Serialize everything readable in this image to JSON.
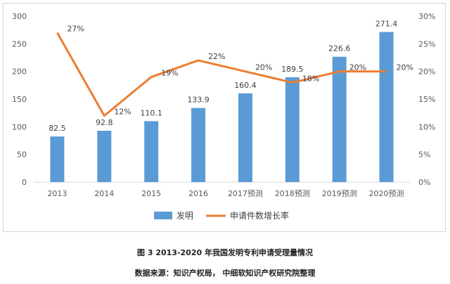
{
  "chart_data": {
    "type": "bar+line",
    "categories": [
      "2013",
      "2014",
      "2015",
      "2016",
      "2017预测",
      "2018预测",
      "2019预测",
      "2020预测"
    ],
    "series": [
      {
        "name": "发明",
        "type": "bar",
        "axis": "left",
        "color": "#5B9BD5",
        "values": [
          82.5,
          92.8,
          110.1,
          133.9,
          160.4,
          189.5,
          226.6,
          271.4
        ],
        "labels": [
          "82.5",
          "92.8",
          "110.1",
          "133.9",
          "160.4",
          "189.5",
          "226.6",
          "271.4"
        ]
      },
      {
        "name": "申请件数增长率",
        "type": "line",
        "axis": "right",
        "color": "#ED7D31",
        "values": [
          27,
          12,
          19,
          22,
          20,
          18,
          20,
          20
        ],
        "labels": [
          "27%",
          "12%",
          "19%",
          "22%",
          "20%",
          "18%",
          "20%",
          "20%"
        ]
      }
    ],
    "y_left": {
      "min": 0,
      "max": 300,
      "ticks": [
        "0",
        "50",
        "100",
        "150",
        "200",
        "250",
        "300"
      ]
    },
    "y_right": {
      "min": 0,
      "max": 30,
      "ticks": [
        "0%",
        "5%",
        "10%",
        "15%",
        "20%",
        "25%",
        "30%"
      ]
    },
    "legend_position": "bottom",
    "grid": false
  },
  "caption": {
    "figure": "图 3    2013-2020 年我国发明专利申请受理量情况",
    "source": "数据来源：知识产权局，  中细软知识产权研究院整理"
  }
}
